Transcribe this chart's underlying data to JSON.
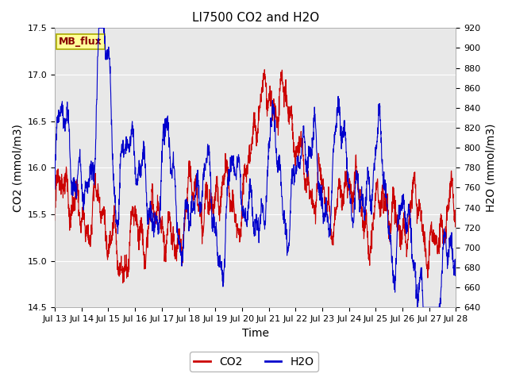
{
  "title": "LI7500 CO2 and H2O",
  "xlabel": "Time",
  "ylabel_left": "CO2 (mmol/m3)",
  "ylabel_right": "H2O (mmol/m3)",
  "co2_ylim": [
    14.5,
    17.5
  ],
  "h2o_ylim": [
    640,
    920
  ],
  "co2_yticks": [
    14.5,
    15.0,
    15.5,
    16.0,
    16.5,
    17.0,
    17.5
  ],
  "h2o_yticks": [
    640,
    660,
    680,
    700,
    720,
    740,
    760,
    780,
    800,
    820,
    840,
    860,
    880,
    900,
    920
  ],
  "co2_color": "#cc0000",
  "h2o_color": "#0000cc",
  "co2_linewidth": 0.8,
  "h2o_linewidth": 0.8,
  "fig_facecolor": "#ffffff",
  "plot_bg_color": "#e8e8e8",
  "grid_color": "#ffffff",
  "label_box_text": "MB_flux",
  "label_box_facecolor": "#ffff99",
  "label_box_edgecolor": "#aaaa00",
  "label_text_color": "#880000",
  "x_ticks": [
    "Jul 13",
    "Jul 14",
    "Jul 15",
    "Jul 16",
    "Jul 17",
    "Jul 18",
    "Jul 19",
    "Jul 20",
    "Jul 21",
    "Jul 22",
    "Jul 23",
    "Jul 24",
    "Jul 25",
    "Jul 26",
    "Jul 27",
    "Jul 28"
  ],
  "title_fontsize": 11,
  "axis_label_fontsize": 10,
  "tick_fontsize": 8,
  "legend_fontsize": 10
}
